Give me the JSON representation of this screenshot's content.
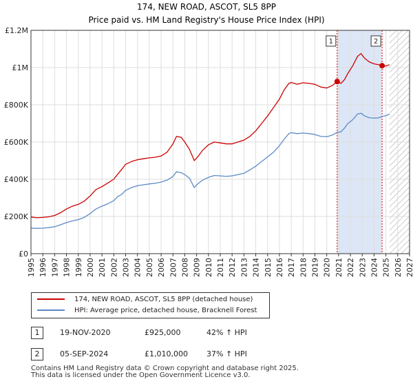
{
  "chart_data": {
    "type": "line",
    "title": "174, NEW ROAD, ASCOT, SL5 8PP",
    "subtitle": "Price paid vs. HM Land Registry's House Price Index (HPI)",
    "x_range": [
      1995,
      2027
    ],
    "ylim": [
      0,
      1200000
    ],
    "y_ticks": [
      0,
      200000,
      400000,
      600000,
      800000,
      1000000,
      1200000
    ],
    "y_tick_labels": [
      "£0",
      "£200K",
      "£400K",
      "£600K",
      "£800K",
      "£1M",
      "£1.2M"
    ],
    "x_ticks": [
      1995,
      1996,
      1997,
      1998,
      1999,
      2000,
      2001,
      2002,
      2003,
      2004,
      2005,
      2006,
      2007,
      2008,
      2009,
      2010,
      2011,
      2012,
      2013,
      2014,
      2015,
      2016,
      2017,
      2018,
      2019,
      2020,
      2021,
      2022,
      2023,
      2024,
      2025,
      2026,
      2027
    ],
    "future_hatch_start": 2025.3,
    "purchase_shading": [
      2020.88,
      2024.68
    ],
    "series": [
      {
        "name": "174, NEW ROAD, ASCOT, SL5 8PP (detached house)",
        "color": "#cc0000",
        "points": [
          [
            1995,
            197000
          ],
          [
            1995.5,
            193000
          ],
          [
            1996,
            195000
          ],
          [
            1996.5,
            198000
          ],
          [
            1997,
            205000
          ],
          [
            1997.5,
            220000
          ],
          [
            1998,
            240000
          ],
          [
            1998.5,
            255000
          ],
          [
            1999,
            265000
          ],
          [
            1999.5,
            282000
          ],
          [
            2000,
            310000
          ],
          [
            2000.5,
            345000
          ],
          [
            2001,
            360000
          ],
          [
            2001.5,
            380000
          ],
          [
            2002,
            400000
          ],
          [
            2002.3,
            425000
          ],
          [
            2002.7,
            455000
          ],
          [
            2003,
            480000
          ],
          [
            2003.5,
            495000
          ],
          [
            2004,
            505000
          ],
          [
            2004.5,
            510000
          ],
          [
            2005,
            515000
          ],
          [
            2005.5,
            518000
          ],
          [
            2006,
            525000
          ],
          [
            2006.5,
            545000
          ],
          [
            2007,
            590000
          ],
          [
            2007.3,
            630000
          ],
          [
            2007.7,
            625000
          ],
          [
            2008,
            600000
          ],
          [
            2008.4,
            560000
          ],
          [
            2008.8,
            500000
          ],
          [
            2009.1,
            520000
          ],
          [
            2009.5,
            555000
          ],
          [
            2010,
            585000
          ],
          [
            2010.5,
            600000
          ],
          [
            2011,
            595000
          ],
          [
            2011.5,
            590000
          ],
          [
            2012,
            590000
          ],
          [
            2012.5,
            600000
          ],
          [
            2013,
            610000
          ],
          [
            2013.5,
            630000
          ],
          [
            2014,
            660000
          ],
          [
            2014.5,
            700000
          ],
          [
            2015,
            740000
          ],
          [
            2015.5,
            785000
          ],
          [
            2016,
            830000
          ],
          [
            2016.4,
            880000
          ],
          [
            2016.8,
            915000
          ],
          [
            2017,
            920000
          ],
          [
            2017.5,
            910000
          ],
          [
            2018,
            918000
          ],
          [
            2018.5,
            915000
          ],
          [
            2019,
            910000
          ],
          [
            2019.5,
            895000
          ],
          [
            2020,
            890000
          ],
          [
            2020.5,
            905000
          ],
          [
            2020.88,
            925000
          ],
          [
            2021.2,
            915000
          ],
          [
            2021.5,
            935000
          ],
          [
            2021.8,
            970000
          ],
          [
            2022.2,
            1010000
          ],
          [
            2022.6,
            1060000
          ],
          [
            2022.9,
            1075000
          ],
          [
            2023.2,
            1050000
          ],
          [
            2023.6,
            1030000
          ],
          [
            2024,
            1020000
          ],
          [
            2024.4,
            1015000
          ],
          [
            2024.68,
            1010000
          ],
          [
            2025,
            1008000
          ],
          [
            2025.3,
            1015000
          ]
        ]
      },
      {
        "name": "HPI: Average price, detached house, Bracknell Forest",
        "color": "#5b8ac6",
        "points": [
          [
            1995,
            137000
          ],
          [
            1995.5,
            136000
          ],
          [
            1996,
            137000
          ],
          [
            1996.5,
            140000
          ],
          [
            1997,
            145000
          ],
          [
            1997.5,
            155000
          ],
          [
            1998,
            167000
          ],
          [
            1998.5,
            176000
          ],
          [
            1999,
            183000
          ],
          [
            1999.5,
            195000
          ],
          [
            2000,
            215000
          ],
          [
            2000.5,
            240000
          ],
          [
            2001,
            255000
          ],
          [
            2001.5,
            268000
          ],
          [
            2002,
            285000
          ],
          [
            2002.3,
            305000
          ],
          [
            2002.7,
            320000
          ],
          [
            2003,
            340000
          ],
          [
            2003.5,
            355000
          ],
          [
            2004,
            365000
          ],
          [
            2004.5,
            370000
          ],
          [
            2005,
            375000
          ],
          [
            2005.5,
            378000
          ],
          [
            2006,
            385000
          ],
          [
            2006.5,
            395000
          ],
          [
            2007,
            415000
          ],
          [
            2007.3,
            440000
          ],
          [
            2007.7,
            435000
          ],
          [
            2008,
            425000
          ],
          [
            2008.4,
            405000
          ],
          [
            2008.8,
            355000
          ],
          [
            2009.1,
            375000
          ],
          [
            2009.5,
            395000
          ],
          [
            2010,
            410000
          ],
          [
            2010.5,
            420000
          ],
          [
            2011,
            418000
          ],
          [
            2011.5,
            415000
          ],
          [
            2012,
            418000
          ],
          [
            2012.5,
            425000
          ],
          [
            2013,
            432000
          ],
          [
            2013.5,
            450000
          ],
          [
            2014,
            470000
          ],
          [
            2014.5,
            495000
          ],
          [
            2015,
            520000
          ],
          [
            2015.5,
            545000
          ],
          [
            2016,
            580000
          ],
          [
            2016.4,
            615000
          ],
          [
            2016.8,
            645000
          ],
          [
            2017,
            650000
          ],
          [
            2017.5,
            645000
          ],
          [
            2018,
            648000
          ],
          [
            2018.5,
            645000
          ],
          [
            2019,
            640000
          ],
          [
            2019.5,
            630000
          ],
          [
            2020,
            628000
          ],
          [
            2020.5,
            638000
          ],
          [
            2020.88,
            652000
          ],
          [
            2021.2,
            655000
          ],
          [
            2021.5,
            675000
          ],
          [
            2021.8,
            700000
          ],
          [
            2022.2,
            720000
          ],
          [
            2022.6,
            750000
          ],
          [
            2022.9,
            755000
          ],
          [
            2023.2,
            740000
          ],
          [
            2023.6,
            730000
          ],
          [
            2024,
            728000
          ],
          [
            2024.4,
            730000
          ],
          [
            2024.68,
            737000
          ],
          [
            2025,
            742000
          ],
          [
            2025.3,
            750000
          ]
        ]
      }
    ],
    "markers": [
      {
        "label": "1",
        "x": 2020.88,
        "y": 925000
      },
      {
        "label": "2",
        "x": 2024.68,
        "y": 1010000
      }
    ]
  },
  "legend": {
    "property_label": "174, NEW ROAD, ASCOT, SL5 8PP (detached house)",
    "hpi_label": "HPI: Average price, detached house, Bracknell Forest"
  },
  "transactions": [
    {
      "num": "1",
      "date": "19-NOV-2020",
      "price": "£925,000",
      "hpi": "42% ↑ HPI"
    },
    {
      "num": "2",
      "date": "05-SEP-2024",
      "price": "£1,010,000",
      "hpi": "37% ↑ HPI"
    }
  ],
  "footer": {
    "line1": "Contains HM Land Registry data © Crown copyright and database right 2025.",
    "line2": "This data is licensed under the Open Government Licence v3.0."
  },
  "colors": {
    "property": "#cc0000",
    "hpi": "#5b8ac6",
    "shade": "#dde6f6",
    "grid": "#dddddd"
  }
}
